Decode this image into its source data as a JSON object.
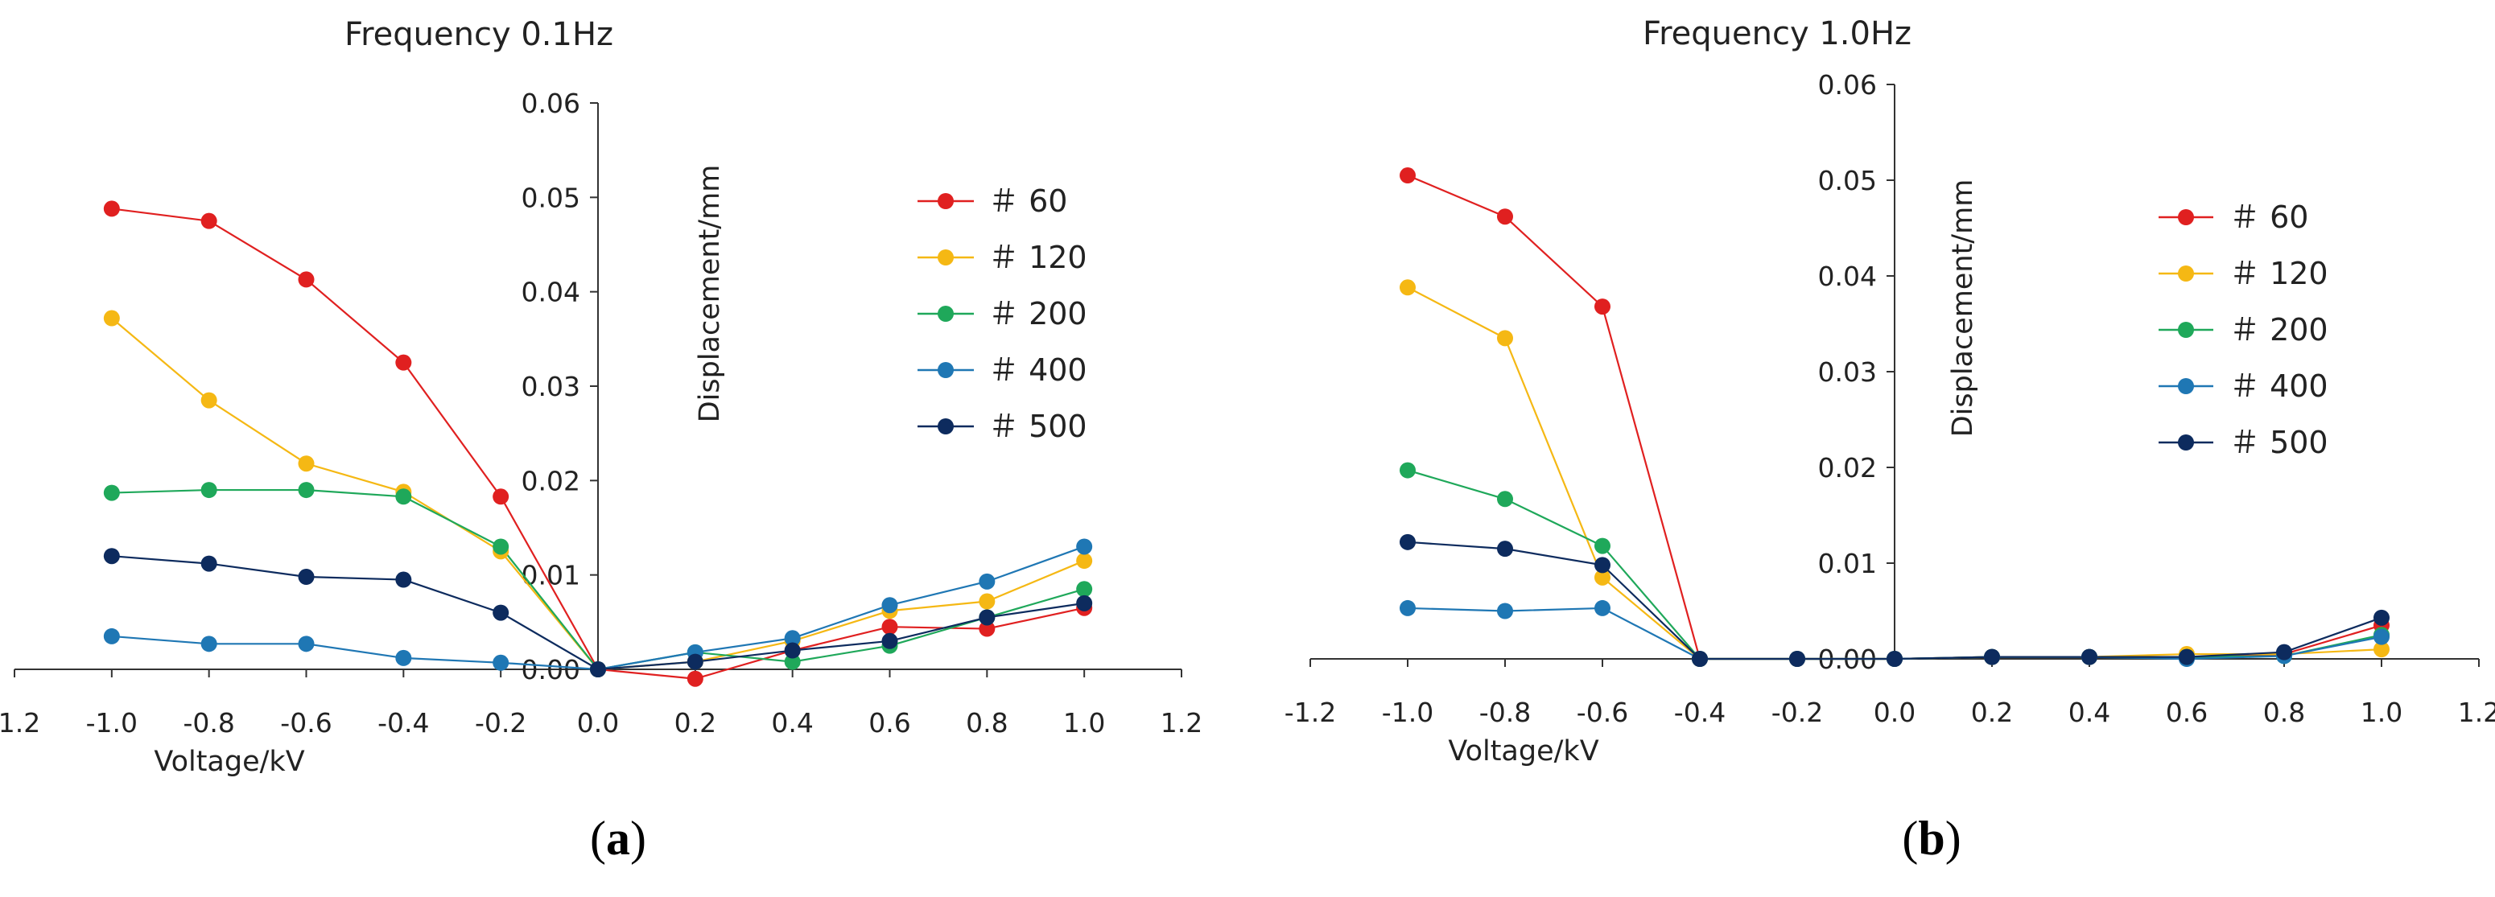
{
  "chart_data": [
    {
      "type": "line",
      "title": "Frequency   0.1Hz",
      "xlabel": "Voltage/kV",
      "ylabel": "Displacement/mm",
      "caption": "(a)",
      "caption_bold": "a",
      "xlim": [
        -1.2,
        1.2
      ],
      "ylim": [
        0,
        0.06
      ],
      "xticks": [
        -1.2,
        -1.0,
        -0.8,
        -0.6,
        -0.4,
        -0.2,
        0.0,
        0.2,
        0.4,
        0.6,
        0.8,
        1.0,
        1.2
      ],
      "xtick_labels": [
        "-1.2",
        "-1.0",
        "-0.8",
        "-0.6",
        "-0.4",
        "-0.2",
        "0.0",
        "0.2",
        "0.4",
        "0.6",
        "0.8",
        "1.0",
        "1.2"
      ],
      "yticks": [
        0,
        0.01,
        0.02,
        0.03,
        0.04,
        0.05,
        0.06
      ],
      "ytick_labels": [
        "0.00",
        "0.01",
        "0.02",
        "0.03",
        "0.04",
        "0.05",
        "0.06"
      ],
      "x": [
        -1.0,
        -0.8,
        -0.6,
        -0.4,
        -0.2,
        0.0,
        0.2,
        0.4,
        0.6,
        0.8,
        1.0
      ],
      "legend_position": "upper-right",
      "series": [
        {
          "name": "＃ 60",
          "color": "#e02020",
          "values": [
            0.0488,
            0.0475,
            0.0413,
            0.0325,
            0.0183,
            0.0,
            -0.001,
            0.002,
            0.0045,
            0.0043,
            0.0065
          ]
        },
        {
          "name": "＃ 120",
          "color": "#f5b814",
          "values": [
            0.0372,
            0.0285,
            0.0218,
            0.0188,
            0.0125,
            0.0,
            0.0008,
            0.003,
            0.0062,
            0.0072,
            0.0115
          ]
        },
        {
          "name": "＃ 200",
          "color": "#1fa85a",
          "values": [
            0.0187,
            0.019,
            0.019,
            0.0183,
            0.013,
            0.0,
            0.0018,
            0.0008,
            0.0025,
            0.0055,
            0.0085
          ]
        },
        {
          "name": "＃ 400",
          "color": "#1f77b4",
          "values": [
            0.0035,
            0.0027,
            0.0027,
            0.0012,
            0.0007,
            0.0,
            0.0018,
            0.0033,
            0.0068,
            0.0093,
            0.013
          ]
        },
        {
          "name": "＃ 500",
          "color": "#0d2b5e",
          "values": [
            0.012,
            0.0112,
            0.0098,
            0.0095,
            0.006,
            0.0,
            0.0008,
            0.002,
            0.003,
            0.0055,
            0.007
          ]
        }
      ]
    },
    {
      "type": "line",
      "title": "Frequency   1.0Hz",
      "xlabel": "Voltage/kV",
      "ylabel": "Displacement/mm",
      "caption": "(b)",
      "caption_bold": "b",
      "xlim": [
        -1.2,
        1.2
      ],
      "ylim": [
        0,
        0.06
      ],
      "xticks": [
        -1.2,
        -1.0,
        -0.8,
        -0.6,
        -0.4,
        -0.2,
        0.0,
        0.2,
        0.4,
        0.6,
        0.8,
        1.0,
        1.2
      ],
      "xtick_labels": [
        "-1.2",
        "-1.0",
        "-0.8",
        "-0.6",
        "-0.4",
        "-0.2",
        "0.0",
        "0.2",
        "0.4",
        "0.6",
        "0.8",
        "1.0",
        "1.2"
      ],
      "yticks": [
        0,
        0.01,
        0.02,
        0.03,
        0.04,
        0.05,
        0.06
      ],
      "ytick_labels": [
        "0.00",
        "0.01",
        "0.02",
        "0.03",
        "0.04",
        "0.05",
        "0.06"
      ],
      "x": [
        -1.0,
        -0.8,
        -0.6,
        -0.4,
        -0.2,
        0.0,
        0.2,
        0.4,
        0.6,
        0.8,
        1.0
      ],
      "legend_position": "upper-right",
      "series": [
        {
          "name": "＃ 60",
          "color": "#e02020",
          "values": [
            0.0505,
            0.0462,
            0.0368,
            0.0,
            0.0,
            0.0,
            0.0002,
            0.0002,
            0.0002,
            0.0005,
            0.0035
          ]
        },
        {
          "name": "＃ 120",
          "color": "#f5b814",
          "values": [
            0.0388,
            0.0335,
            0.0085,
            0.0,
            0.0,
            0.0,
            0.0002,
            0.0002,
            0.0005,
            0.0005,
            0.001
          ]
        },
        {
          "name": "＃ 200",
          "color": "#1fa85a",
          "values": [
            0.0197,
            0.0167,
            0.0118,
            0.0,
            0.0,
            0.0,
            0.0002,
            0.0002,
            0.0002,
            0.0003,
            0.0025
          ]
        },
        {
          "name": "＃ 400",
          "color": "#1f77b4",
          "values": [
            0.0053,
            0.005,
            0.0053,
            0.0,
            0.0,
            0.0,
            0.0002,
            0.0002,
            0.0,
            0.0003,
            0.0023
          ]
        },
        {
          "name": "＃ 500",
          "color": "#0d2b5e",
          "values": [
            0.0122,
            0.0115,
            0.0098,
            0.0,
            0.0,
            0.0,
            0.0002,
            0.0002,
            0.0002,
            0.0007,
            0.0043
          ]
        }
      ]
    }
  ]
}
